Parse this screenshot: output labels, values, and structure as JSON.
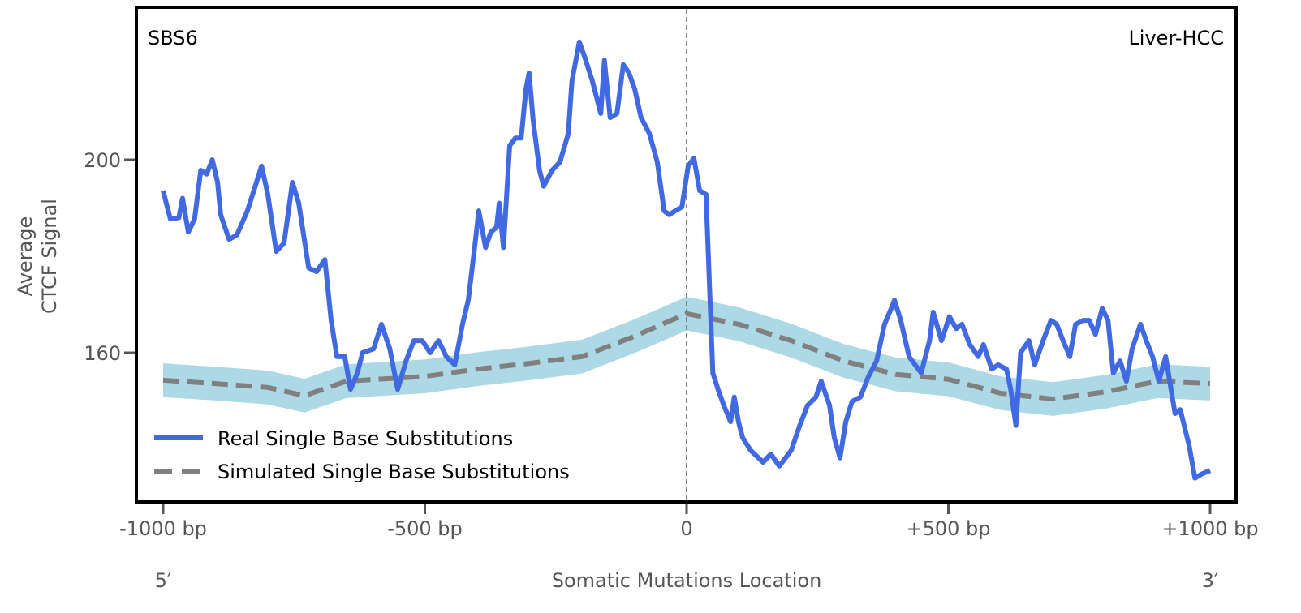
{
  "chart_data": {
    "type": "line",
    "title_left": "SBS6",
    "title_right": "Liver-HCC",
    "xlabel": "Somatic Mutations Location",
    "ylabel_lines": [
      "Average",
      "CTCF Signal"
    ],
    "x_end_labels": {
      "left": "5′",
      "right": "3′"
    },
    "xlim": [
      -1025,
      1050
    ],
    "ylim": [
      129,
      231.6
    ],
    "xticks": [
      {
        "value": -1000,
        "label": "-1000 bp"
      },
      {
        "value": -500,
        "label": "-500 bp"
      },
      {
        "value": 0,
        "label": "0"
      },
      {
        "value": 500,
        "label": "+500 bp"
      },
      {
        "value": 1000,
        "label": "+1000 bp"
      }
    ],
    "yticks": [
      {
        "value": 160,
        "label": "160"
      },
      {
        "value": 200,
        "label": "200"
      }
    ],
    "vline_x": 0,
    "grid": false,
    "legend_position": "lower-left",
    "colors": {
      "real": "#4169e1",
      "simulated": "#808080",
      "band": "#add8e6",
      "frame": "#000000",
      "tick": "#555555"
    },
    "series": [
      {
        "name": "Real Single Base Substitutions",
        "style": "solid",
        "x": [
          -1000,
          -994,
          -986,
          -970,
          -963,
          -952,
          -940,
          -928,
          -917,
          -906,
          -896,
          -890,
          -874,
          -859,
          -839,
          -824,
          -812,
          -800,
          -784,
          -769,
          -753,
          -741,
          -722,
          -707,
          -691,
          -679,
          -668,
          -653,
          -642,
          -629,
          -619,
          -598,
          -583,
          -567,
          -552,
          -536,
          -521,
          -505,
          -490,
          -474,
          -459,
          -443,
          -428,
          -417,
          -405,
          -397,
          -384,
          -374,
          -363,
          -358,
          -350,
          -338,
          -327,
          -316,
          -307,
          -301,
          -293,
          -281,
          -273,
          -257,
          -242,
          -226,
          -219,
          -205,
          -195,
          -180,
          -164,
          -157,
          -146,
          -133,
          -121,
          -110,
          -99,
          -87,
          -71,
          -56,
          -43,
          -33,
          -22,
          -9,
          3,
          14,
          25,
          37,
          50,
          60,
          71,
          84,
          91,
          99,
          107,
          122,
          146,
          161,
          177,
          200,
          216,
          231,
          247,
          257,
          273,
          282,
          293,
          304,
          316,
          332,
          347,
          363,
          378,
          391,
          397,
          409,
          425,
          448,
          464,
          471,
          487,
          502,
          515,
          526,
          541,
          557,
          567,
          583,
          595,
          611,
          619,
          629,
          638,
          654,
          665,
          681,
          696,
          707,
          719,
          732,
          743,
          758,
          769,
          781,
          794,
          805,
          815,
          828,
          840,
          851,
          867,
          878,
          890,
          902,
          915,
          933,
          943,
          960,
          971,
          983,
          1000
        ],
        "y": [
          193.6,
          191,
          187.7,
          188,
          192,
          185,
          187.7,
          197.8,
          197,
          200,
          195.3,
          188.6,
          183.5,
          184.4,
          189.4,
          194.5,
          198.7,
          192.8,
          181,
          182.7,
          195.3,
          191,
          177.6,
          176.8,
          179.3,
          166.7,
          159.2,
          159.2,
          152.4,
          155.8,
          160,
          160.8,
          165.9,
          160.8,
          152.4,
          158.3,
          162.5,
          162.5,
          160,
          162.5,
          159.2,
          157.5,
          165.9,
          170.9,
          181.8,
          189.4,
          181.8,
          185,
          186,
          191,
          181.8,
          202.9,
          204.5,
          204.5,
          214.6,
          218,
          208,
          197.8,
          194.5,
          197.8,
          199.5,
          205.4,
          216.3,
          224.4,
          221.4,
          216.3,
          209.6,
          220.6,
          208.7,
          209.6,
          219.7,
          218,
          214.6,
          208.7,
          205.4,
          199.5,
          189.4,
          188.6,
          189.4,
          190.2,
          198.7,
          200.3,
          193.6,
          192.8,
          155.8,
          152.4,
          149.1,
          145.7,
          150.8,
          145.7,
          142.4,
          139.8,
          137.3,
          139,
          136.5,
          139.8,
          144.9,
          149.1,
          150.8,
          154.1,
          149.1,
          142.4,
          138.2,
          145.7,
          149.9,
          150.8,
          155,
          158.3,
          165.9,
          169.2,
          170.9,
          166.7,
          159.2,
          155.8,
          162.5,
          168.4,
          162.5,
          167.5,
          165,
          165.9,
          161.7,
          159.2,
          161.7,
          156.6,
          157.5,
          156.6,
          152.4,
          144.9,
          160,
          162.5,
          157.5,
          162.5,
          166.7,
          165.9,
          162.5,
          159.2,
          165.9,
          166.7,
          166.7,
          163.8,
          169.2,
          166.7,
          155.8,
          158.3,
          154.1,
          160.8,
          165.9,
          162.5,
          159.2,
          154.1,
          159.2,
          147.4,
          148.2,
          140.7,
          134,
          134.8,
          135.6
        ]
      },
      {
        "name": "Simulated Single Base Substitutions",
        "style": "dashed",
        "x": [
          -1000,
          -900,
          -800,
          -730,
          -650,
          -500,
          -400,
          -300,
          -200,
          -100,
          0,
          100,
          200,
          300,
          400,
          500,
          600,
          700,
          800,
          900,
          1000
        ],
        "y": [
          154.3,
          153.6,
          152.8,
          151.1,
          154.1,
          155.1,
          156.6,
          157.8,
          159.2,
          163.4,
          168.1,
          165.9,
          162.5,
          158.3,
          155.5,
          154.5,
          151.6,
          150.4,
          151.9,
          154.1,
          153.6
        ],
        "band_halfwidth": 3.5
      }
    ]
  }
}
